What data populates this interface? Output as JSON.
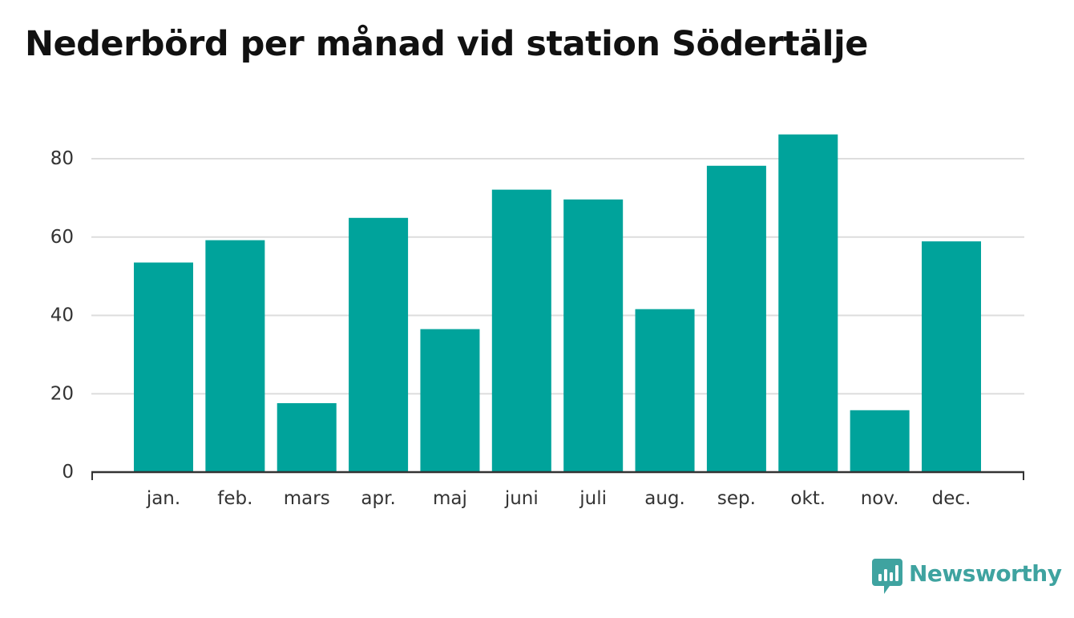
{
  "title": "Nederbörd per månad vid station Södertälje",
  "chart_data": {
    "type": "bar",
    "title": "Nederbörd per månad vid station Södertälje",
    "categories": [
      "jan.",
      "feb.",
      "mars",
      "apr.",
      "maj",
      "juni",
      "juli",
      "aug.",
      "sep.",
      "okt.",
      "nov.",
      "dec."
    ],
    "values": [
      53.5,
      59.2,
      17.6,
      64.9,
      36.5,
      72.1,
      69.6,
      41.6,
      78.2,
      86.2,
      15.8,
      58.9
    ],
    "xlabel": "",
    "ylabel": "",
    "yticks": [
      0,
      20,
      40,
      60,
      80
    ],
    "ylim": [
      0,
      95
    ],
    "grid": true,
    "bar_color": "#00a39b",
    "grid_color": "#dddddd",
    "axis_color": "#333333"
  },
  "brand": {
    "name": "Newsworthy",
    "color": "#3fa3a0",
    "icon": "newsworthy-logo-icon"
  }
}
